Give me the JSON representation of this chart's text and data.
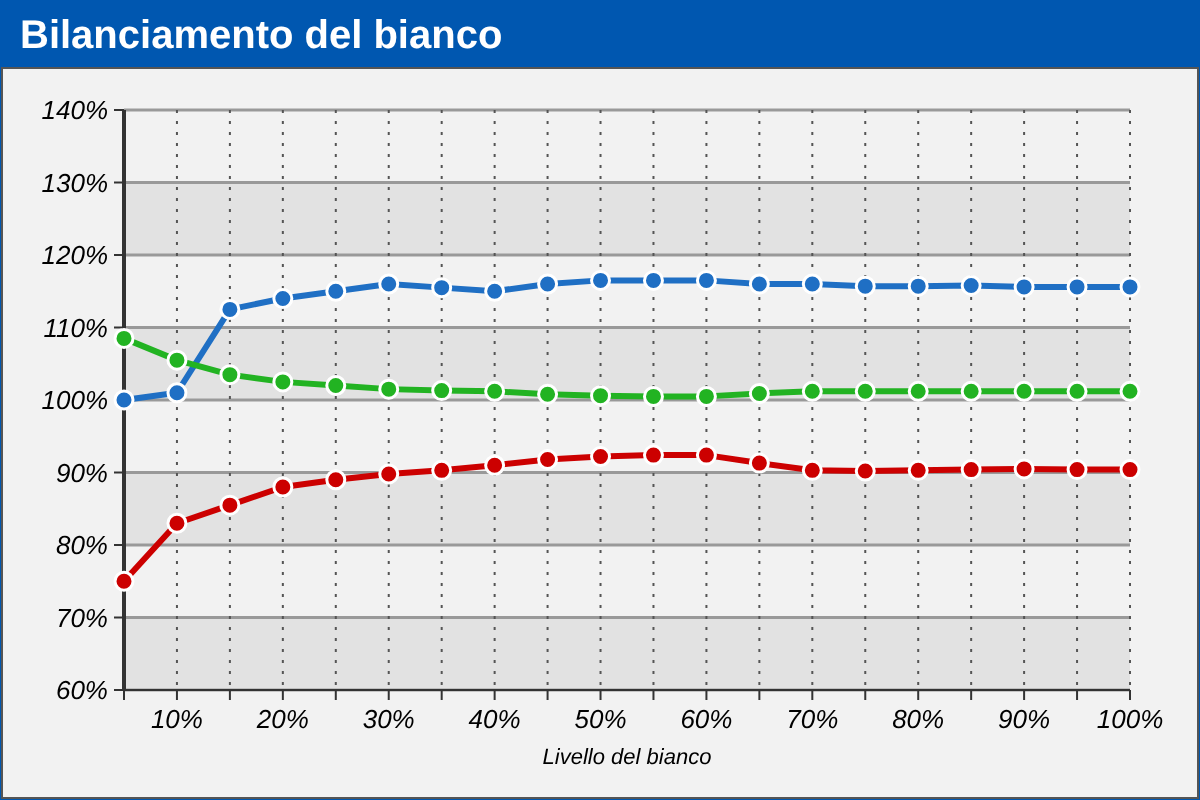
{
  "chart_data": {
    "type": "line",
    "title": "Bilanciamento del bianco",
    "xlabel": "Livello del bianco",
    "x": [
      5,
      10,
      15,
      20,
      25,
      30,
      35,
      40,
      45,
      50,
      55,
      60,
      65,
      70,
      75,
      80,
      85,
      90,
      95,
      100
    ],
    "series": [
      {
        "color": "#1f6fc4",
        "values": [
          100,
          101,
          112.5,
          114,
          115,
          116,
          115.5,
          115,
          116,
          116.5,
          116.5,
          116.5,
          116,
          116,
          115.7,
          115.7,
          115.8,
          115.6,
          115.6,
          115.6
        ]
      },
      {
        "color": "#22b322",
        "values": [
          108.5,
          105.5,
          103.5,
          102.5,
          102,
          101.5,
          101.3,
          101.2,
          100.8,
          100.6,
          100.5,
          100.5,
          100.9,
          101.2,
          101.2,
          101.2,
          101.2,
          101.2,
          101.2,
          101.2
        ]
      },
      {
        "color": "#cc0000",
        "values": [
          75,
          83,
          85.5,
          88,
          89,
          89.8,
          90.3,
          91,
          91.8,
          92.2,
          92.4,
          92.4,
          91.3,
          90.3,
          90.2,
          90.3,
          90.4,
          90.5,
          90.4,
          90.4
        ]
      }
    ],
    "xlim": [
      5,
      100
    ],
    "xticks": [
      {
        "value": 5,
        "label": null
      },
      {
        "value": 10,
        "label": "10%"
      },
      {
        "value": 15,
        "label": null
      },
      {
        "value": 20,
        "label": "20%"
      },
      {
        "value": 25,
        "label": null
      },
      {
        "value": 30,
        "label": "30%"
      },
      {
        "value": 35,
        "label": null
      },
      {
        "value": 40,
        "label": "40%"
      },
      {
        "value": 45,
        "label": null
      },
      {
        "value": 50,
        "label": "50%"
      },
      {
        "value": 55,
        "label": null
      },
      {
        "value": 60,
        "label": "60%"
      },
      {
        "value": 65,
        "label": null
      },
      {
        "value": 70,
        "label": "70%"
      },
      {
        "value": 75,
        "label": null
      },
      {
        "value": 80,
        "label": "80%"
      },
      {
        "value": 85,
        "label": null
      },
      {
        "value": 90,
        "label": "90%"
      },
      {
        "value": 95,
        "label": null
      },
      {
        "value": 100,
        "label": "100%"
      }
    ],
    "ylim": [
      60,
      140
    ],
    "yticks": [
      {
        "value": 60,
        "label": "60%"
      },
      {
        "value": 70,
        "label": "70%"
      },
      {
        "value": 80,
        "label": "80%"
      },
      {
        "value": 90,
        "label": "90%"
      },
      {
        "value": 100,
        "label": "100%"
      },
      {
        "value": 110,
        "label": "110%"
      },
      {
        "value": 120,
        "label": "120%"
      },
      {
        "value": 130,
        "label": "130%"
      },
      {
        "value": 140,
        "label": "140%"
      }
    ],
    "grid": true,
    "marker": "circle",
    "line_style": "solid"
  }
}
